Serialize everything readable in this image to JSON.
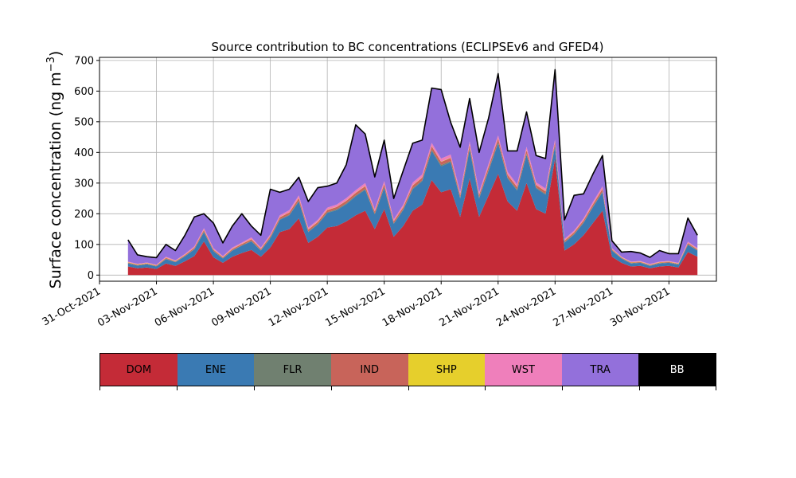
{
  "chart_data": {
    "type": "area",
    "title": "Source contribution to BC concentrations (ECLIPSEv6 and GFED4)",
    "ylabel": "Surface concentration (ng m",
    "ylabel_sup": "−3",
    "ylabel_close": ")",
    "xlabel": "",
    "ylim": [
      -20,
      710
    ],
    "xlim": [
      "2021-10-31T00:00",
      "2021-12-02T12:00"
    ],
    "yticks": [
      0,
      100,
      200,
      300,
      400,
      500,
      600,
      700
    ],
    "xtick_labels": [
      "31-Oct-2021",
      "03-Nov-2021",
      "06-Nov-2021",
      "09-Nov-2021",
      "12-Nov-2021",
      "15-Nov-2021",
      "18-Nov-2021",
      "21-Nov-2021",
      "24-Nov-2021",
      "27-Nov-2021",
      "30-Nov-2021"
    ],
    "grid": true,
    "legend_placement": "colorbar below plot",
    "x": [
      "2021-11-01T12:00",
      "2021-11-02T00:00",
      "2021-11-02T12:00",
      "2021-11-03T00:00",
      "2021-11-03T12:00",
      "2021-11-04T00:00",
      "2021-11-04T12:00",
      "2021-11-05T00:00",
      "2021-11-05T12:00",
      "2021-11-06T00:00",
      "2021-11-06T12:00",
      "2021-11-07T00:00",
      "2021-11-07T12:00",
      "2021-11-08T00:00",
      "2021-11-08T12:00",
      "2021-11-09T00:00",
      "2021-11-09T12:00",
      "2021-11-10T00:00",
      "2021-11-10T12:00",
      "2021-11-11T00:00",
      "2021-11-11T12:00",
      "2021-11-12T00:00",
      "2021-11-12T12:00",
      "2021-11-13T00:00",
      "2021-11-13T12:00",
      "2021-11-14T00:00",
      "2021-11-14T12:00",
      "2021-11-15T00:00",
      "2021-11-15T12:00",
      "2021-11-16T00:00",
      "2021-11-16T12:00",
      "2021-11-17T00:00",
      "2021-11-17T12:00",
      "2021-11-18T00:00",
      "2021-11-18T12:00",
      "2021-11-19T00:00",
      "2021-11-19T12:00",
      "2021-11-20T00:00",
      "2021-11-20T12:00",
      "2021-11-21T00:00",
      "2021-11-21T12:00",
      "2021-11-22T00:00",
      "2021-11-22T12:00",
      "2021-11-23T00:00",
      "2021-11-23T12:00",
      "2021-11-24T00:00",
      "2021-11-24T12:00",
      "2021-11-25T00:00",
      "2021-11-25T12:00",
      "2021-11-26T00:00",
      "2021-11-26T12:00",
      "2021-11-27T00:00",
      "2021-11-27T12:00",
      "2021-11-28T00:00",
      "2021-11-28T12:00",
      "2021-11-29T00:00",
      "2021-11-29T12:00",
      "2021-11-30T00:00",
      "2021-11-30T12:00",
      "2021-12-01T00:00",
      "2021-12-01T12:00"
    ],
    "series": [
      {
        "name": "DOM",
        "color": "#c42b37",
        "values": [
          28,
          22,
          25,
          20,
          38,
          30,
          45,
          62,
          110,
          58,
          40,
          60,
          72,
          82,
          60,
          90,
          140,
          150,
          185,
          105,
          125,
          155,
          160,
          175,
          195,
          210,
          150,
          215,
          125,
          160,
          210,
          230,
          310,
          270,
          280,
          190,
          315,
          190,
          260,
          330,
          240,
          210,
          300,
          215,
          200,
          380,
          80,
          100,
          130,
          170,
          210,
          60,
          40,
          28,
          30,
          22,
          28,
          30,
          25,
          75,
          60
        ]
      },
      {
        "name": "ENE",
        "color": "#3a7ab3",
        "values": [
          10,
          9,
          10,
          8,
          14,
          12,
          16,
          22,
          30,
          20,
          14,
          20,
          24,
          28,
          20,
          30,
          40,
          45,
          55,
          35,
          40,
          48,
          52,
          56,
          62,
          68,
          48,
          70,
          42,
          52,
          70,
          76,
          95,
          85,
          88,
          60,
          95,
          60,
          80,
          100,
          75,
          66,
          92,
          68,
          62,
          40,
          26,
          32,
          40,
          52,
          60,
          20,
          14,
          10,
          10,
          8,
          10,
          10,
          9,
          24,
          20
        ]
      },
      {
        "name": "FLR",
        "color": "#708070",
        "values": [
          1,
          1,
          1,
          1,
          1,
          1,
          1,
          1,
          2,
          1,
          1,
          1,
          1,
          2,
          1,
          2,
          2,
          2,
          3,
          2,
          2,
          2,
          3,
          3,
          3,
          3,
          2,
          3,
          2,
          2,
          3,
          3,
          4,
          4,
          4,
          3,
          4,
          3,
          3,
          4,
          3,
          3,
          4,
          3,
          3,
          3,
          1,
          2,
          2,
          2,
          3,
          1,
          1,
          1,
          1,
          1,
          1,
          1,
          1,
          1,
          1
        ]
      },
      {
        "name": "IND",
        "color": "#c8645a",
        "values": [
          2,
          2,
          2,
          2,
          3,
          2,
          3,
          4,
          5,
          4,
          3,
          4,
          4,
          5,
          4,
          5,
          6,
          7,
          8,
          6,
          6,
          7,
          7,
          8,
          8,
          9,
          7,
          9,
          6,
          7,
          9,
          9,
          11,
          10,
          10,
          8,
          11,
          8,
          10,
          11,
          9,
          8,
          11,
          8,
          8,
          10,
          5,
          5,
          6,
          7,
          8,
          3,
          2,
          2,
          2,
          2,
          2,
          2,
          2,
          4,
          3
        ]
      },
      {
        "name": "SHP",
        "color": "#e6cf2c",
        "values": [
          1,
          1,
          1,
          1,
          1,
          1,
          1,
          1,
          1,
          1,
          1,
          1,
          1,
          1,
          1,
          1,
          1,
          1,
          1,
          1,
          1,
          1,
          1,
          1,
          1,
          1,
          1,
          1,
          1,
          1,
          1,
          1,
          1,
          1,
          1,
          1,
          1,
          1,
          1,
          1,
          1,
          1,
          1,
          1,
          1,
          1,
          1,
          1,
          1,
          1,
          1,
          1,
          1,
          1,
          1,
          1,
          1,
          1,
          1,
          1,
          1
        ]
      },
      {
        "name": "WST",
        "color": "#ef7fbb",
        "values": [
          2,
          2,
          2,
          2,
          3,
          2,
          3,
          4,
          5,
          4,
          3,
          4,
          4,
          5,
          4,
          5,
          6,
          7,
          8,
          6,
          6,
          7,
          7,
          8,
          8,
          9,
          7,
          9,
          6,
          7,
          9,
          9,
          10,
          10,
          10,
          8,
          10,
          8,
          9,
          10,
          9,
          8,
          10,
          8,
          8,
          9,
          5,
          5,
          6,
          7,
          8,
          3,
          2,
          2,
          2,
          2,
          2,
          2,
          2,
          4,
          3
        ]
      },
      {
        "name": "TRA",
        "color": "#9370db",
        "values": [
          71,
          29,
          19,
          23,
          40,
          32,
          61,
          96,
          47,
          82,
          43,
          70,
          94,
          37,
          40,
          147,
          75,
          68,
          59,
          85,
          105,
          70,
          70,
          109,
          213,
          160,
          105,
          133,
          68,
          111,
          128,
          112,
          179,
          225,
          105,
          147,
          140,
          130,
          149,
          201,
          68,
          109,
          114,
          87,
          98,
          227,
          62,
          115,
          80,
          91,
          100,
          24,
          15,
          33,
          26,
          22,
          36,
          24,
          30,
          77,
          42
        ]
      },
      {
        "name": "BB",
        "color": "#000000",
        "values": [
          0,
          0,
          0,
          0,
          0,
          0,
          0,
          0,
          0,
          0,
          0,
          0,
          0,
          0,
          0,
          0,
          0,
          0,
          0,
          0,
          0,
          0,
          0,
          0,
          0,
          0,
          0,
          0,
          0,
          0,
          0,
          0,
          0,
          0,
          0,
          0,
          0,
          0,
          0,
          0,
          0,
          0,
          0,
          0,
          0,
          0,
          0,
          0,
          0,
          0,
          0,
          0,
          0,
          0,
          0,
          0,
          0,
          0,
          0,
          0,
          0
        ]
      }
    ]
  },
  "legend": {
    "items": [
      {
        "label": "DOM",
        "color": "#c42b37",
        "text_color": "#000000"
      },
      {
        "label": "ENE",
        "color": "#3a7ab3",
        "text_color": "#000000"
      },
      {
        "label": "FLR",
        "color": "#708070",
        "text_color": "#000000"
      },
      {
        "label": "IND",
        "color": "#c8645a",
        "text_color": "#000000"
      },
      {
        "label": "SHP",
        "color": "#e6cf2c",
        "text_color": "#000000"
      },
      {
        "label": "WST",
        "color": "#ef7fbb",
        "text_color": "#000000"
      },
      {
        "label": "TRA",
        "color": "#9370db",
        "text_color": "#000000"
      },
      {
        "label": "BB",
        "color": "#000000",
        "text_color": "#ffffff"
      }
    ]
  }
}
